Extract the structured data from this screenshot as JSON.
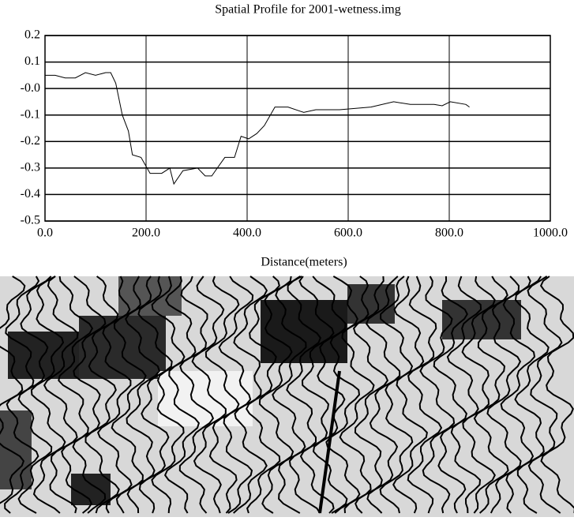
{
  "chart_data": {
    "type": "line",
    "title": "Spatial Profile for 2001-wetness.img",
    "x_label": "Distance(meters)",
    "x": [
      0,
      20,
      40,
      60,
      80,
      100,
      120,
      130,
      140,
      153,
      165,
      173,
      190,
      208,
      231,
      247,
      255,
      273,
      302,
      317,
      330,
      341,
      356,
      375,
      388,
      403,
      419,
      434,
      455,
      481,
      512,
      536,
      583,
      645,
      690,
      723,
      770,
      786,
      802,
      833,
      840
    ],
    "series": [
      {
        "color": "#000000",
        "values": [
          0.05,
          0.05,
          0.04,
          0.04,
          0.06,
          0.05,
          0.06,
          0.06,
          0.02,
          -0.1,
          -0.16,
          -0.25,
          -0.26,
          -0.32,
          -0.32,
          -0.3,
          -0.36,
          -0.31,
          -0.3,
          -0.33,
          -0.33,
          -0.3,
          -0.26,
          -0.26,
          -0.18,
          -0.19,
          -0.17,
          -0.14,
          -0.07,
          -0.07,
          -0.09,
          -0.08,
          -0.08,
          -0.07,
          -0.05,
          -0.06,
          -0.06,
          -0.065,
          -0.05,
          -0.06,
          -0.07
        ]
      }
    ],
    "xlim": [
      0,
      1000
    ],
    "ylim": [
      -0.5,
      0.2
    ],
    "xticks": [
      {
        "value": 0,
        "label": "0.0"
      },
      {
        "value": 200,
        "label": "200.0"
      },
      {
        "value": 400,
        "label": "400.0"
      },
      {
        "value": 600,
        "label": "600.0"
      },
      {
        "value": 800,
        "label": "800.0"
      },
      {
        "value": 1000,
        "label": "1000.0"
      }
    ],
    "yticks": [
      0.2,
      0.1,
      {
        "value": 0,
        "label": "-0.0"
      },
      -0.1,
      -0.2,
      -0.3,
      -0.4,
      -0.5
    ],
    "grid": true
  }
}
